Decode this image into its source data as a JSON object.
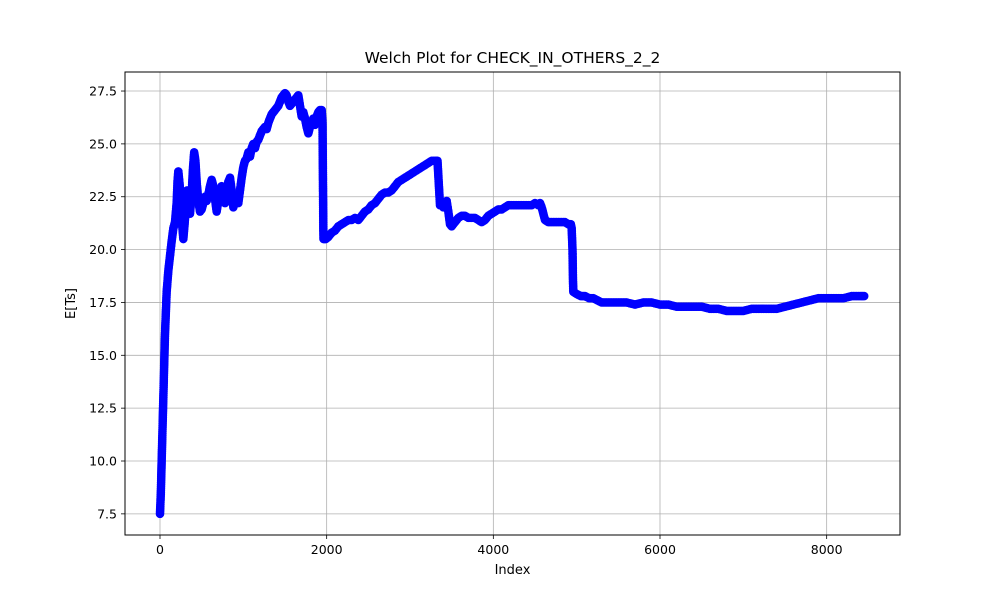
{
  "chart_data": {
    "type": "scatter",
    "title": "Welch Plot for CHECK_IN_OTHERS_2_2",
    "xlabel": "Index",
    "ylabel": "E[Ts]",
    "xlim": [
      -420,
      8880
    ],
    "ylim": [
      6.5,
      28.4
    ],
    "xticks": [
      0,
      2000,
      4000,
      6000,
      8000
    ],
    "xtick_labels": [
      "0",
      "2000",
      "4000",
      "6000",
      "8000"
    ],
    "yticks": [
      7.5,
      10.0,
      12.5,
      15.0,
      17.5,
      20.0,
      22.5,
      25.0,
      27.5
    ],
    "ytick_labels": [
      "7.5",
      "10.0",
      "12.5",
      "15.0",
      "17.5",
      "20.0",
      "22.5",
      "25.0",
      "27.5"
    ],
    "grid": true,
    "marker": "circle",
    "color": "#0000ff",
    "series": [
      {
        "values_xy": [
          [
            0,
            7.5
          ],
          [
            10,
            8.5
          ],
          [
            20,
            10.0
          ],
          [
            30,
            11.5
          ],
          [
            40,
            13.0
          ],
          [
            50,
            14.5
          ],
          [
            60,
            16.0
          ],
          [
            70,
            17.0
          ],
          [
            80,
            18.0
          ],
          [
            100,
            19.0
          ],
          [
            120,
            19.7
          ],
          [
            140,
            20.4
          ],
          [
            160,
            21.0
          ],
          [
            180,
            21.3
          ],
          [
            200,
            22.2
          ],
          [
            210,
            23.2
          ],
          [
            220,
            23.7
          ],
          [
            235,
            23.1
          ],
          [
            250,
            22.2
          ],
          [
            265,
            21.2
          ],
          [
            280,
            20.5
          ],
          [
            295,
            21.2
          ],
          [
            310,
            22.0
          ],
          [
            325,
            22.8
          ],
          [
            340,
            22.3
          ],
          [
            360,
            21.7
          ],
          [
            380,
            22.6
          ],
          [
            395,
            23.8
          ],
          [
            410,
            24.6
          ],
          [
            425,
            24.2
          ],
          [
            440,
            23.2
          ],
          [
            460,
            22.3
          ],
          [
            480,
            21.8
          ],
          [
            500,
            21.9
          ],
          [
            520,
            22.2
          ],
          [
            540,
            22.5
          ],
          [
            560,
            22.3
          ],
          [
            580,
            22.6
          ],
          [
            600,
            23.0
          ],
          [
            620,
            23.3
          ],
          [
            640,
            23.0
          ],
          [
            660,
            22.4
          ],
          [
            680,
            21.8
          ],
          [
            700,
            22.3
          ],
          [
            720,
            22.7
          ],
          [
            740,
            23.0
          ],
          [
            760,
            22.5
          ],
          [
            780,
            22.2
          ],
          [
            800,
            22.8
          ],
          [
            820,
            23.2
          ],
          [
            840,
            23.4
          ],
          [
            860,
            22.8
          ],
          [
            880,
            22.0
          ],
          [
            900,
            22.3
          ],
          [
            920,
            22.5
          ],
          [
            940,
            22.2
          ],
          [
            960,
            22.8
          ],
          [
            980,
            23.4
          ],
          [
            1000,
            23.9
          ],
          [
            1020,
            24.2
          ],
          [
            1040,
            24.3
          ],
          [
            1060,
            24.6
          ],
          [
            1080,
            24.4
          ],
          [
            1100,
            24.8
          ],
          [
            1120,
            25.0
          ],
          [
            1140,
            24.8
          ],
          [
            1160,
            25.1
          ],
          [
            1180,
            25.2
          ],
          [
            1200,
            25.4
          ],
          [
            1220,
            25.6
          ],
          [
            1240,
            25.7
          ],
          [
            1260,
            25.8
          ],
          [
            1280,
            25.7
          ],
          [
            1300,
            26.0
          ],
          [
            1320,
            26.2
          ],
          [
            1340,
            26.4
          ],
          [
            1360,
            26.5
          ],
          [
            1380,
            26.6
          ],
          [
            1400,
            26.7
          ],
          [
            1420,
            26.8
          ],
          [
            1440,
            27.0
          ],
          [
            1460,
            27.2
          ],
          [
            1480,
            27.3
          ],
          [
            1500,
            27.4
          ],
          [
            1520,
            27.3
          ],
          [
            1540,
            27.0
          ],
          [
            1560,
            26.8
          ],
          [
            1580,
            26.9
          ],
          [
            1600,
            27.0
          ],
          [
            1620,
            27.1
          ],
          [
            1640,
            27.2
          ],
          [
            1660,
            27.3
          ],
          [
            1680,
            26.8
          ],
          [
            1700,
            26.3
          ],
          [
            1720,
            26.5
          ],
          [
            1740,
            26.2
          ],
          [
            1760,
            25.8
          ],
          [
            1780,
            25.5
          ],
          [
            1800,
            25.8
          ],
          [
            1820,
            26.0
          ],
          [
            1840,
            26.2
          ],
          [
            1860,
            25.9
          ],
          [
            1880,
            26.3
          ],
          [
            1900,
            26.5
          ],
          [
            1920,
            26.6
          ],
          [
            1940,
            26.6
          ],
          [
            1950,
            26.0
          ],
          [
            1952,
            25.0
          ],
          [
            1954,
            24.0
          ],
          [
            1956,
            23.0
          ],
          [
            1958,
            22.0
          ],
          [
            1960,
            21.0
          ],
          [
            1962,
            20.5
          ],
          [
            1990,
            20.5
          ],
          [
            2020,
            20.6
          ],
          [
            2060,
            20.8
          ],
          [
            2100,
            20.9
          ],
          [
            2140,
            21.1
          ],
          [
            2180,
            21.2
          ],
          [
            2220,
            21.3
          ],
          [
            2260,
            21.4
          ],
          [
            2300,
            21.4
          ],
          [
            2340,
            21.5
          ],
          [
            2380,
            21.4
          ],
          [
            2420,
            21.6
          ],
          [
            2460,
            21.8
          ],
          [
            2500,
            21.9
          ],
          [
            2540,
            22.1
          ],
          [
            2580,
            22.2
          ],
          [
            2620,
            22.4
          ],
          [
            2660,
            22.6
          ],
          [
            2700,
            22.7
          ],
          [
            2740,
            22.7
          ],
          [
            2780,
            22.8
          ],
          [
            2820,
            23.0
          ],
          [
            2860,
            23.2
          ],
          [
            2900,
            23.3
          ],
          [
            2940,
            23.4
          ],
          [
            2980,
            23.5
          ],
          [
            3020,
            23.6
          ],
          [
            3060,
            23.7
          ],
          [
            3100,
            23.8
          ],
          [
            3140,
            23.9
          ],
          [
            3180,
            24.0
          ],
          [
            3220,
            24.1
          ],
          [
            3260,
            24.2
          ],
          [
            3300,
            24.2
          ],
          [
            3330,
            24.2
          ],
          [
            3340,
            23.5
          ],
          [
            3350,
            22.8
          ],
          [
            3360,
            22.1
          ],
          [
            3380,
            22.1
          ],
          [
            3400,
            22.0
          ],
          [
            3420,
            22.2
          ],
          [
            3440,
            22.3
          ],
          [
            3460,
            21.8
          ],
          [
            3480,
            21.2
          ],
          [
            3500,
            21.1
          ],
          [
            3540,
            21.3
          ],
          [
            3580,
            21.5
          ],
          [
            3620,
            21.6
          ],
          [
            3660,
            21.6
          ],
          [
            3700,
            21.5
          ],
          [
            3740,
            21.5
          ],
          [
            3780,
            21.5
          ],
          [
            3820,
            21.4
          ],
          [
            3860,
            21.3
          ],
          [
            3900,
            21.4
          ],
          [
            3940,
            21.6
          ],
          [
            3980,
            21.7
          ],
          [
            4020,
            21.8
          ],
          [
            4060,
            21.9
          ],
          [
            4100,
            21.9
          ],
          [
            4140,
            22.0
          ],
          [
            4180,
            22.1
          ],
          [
            4220,
            22.1
          ],
          [
            4260,
            22.1
          ],
          [
            4300,
            22.1
          ],
          [
            4340,
            22.1
          ],
          [
            4380,
            22.1
          ],
          [
            4420,
            22.1
          ],
          [
            4460,
            22.1
          ],
          [
            4500,
            22.2
          ],
          [
            4540,
            22.1
          ],
          [
            4560,
            22.2
          ],
          [
            4580,
            22.0
          ],
          [
            4600,
            21.7
          ],
          [
            4620,
            21.4
          ],
          [
            4660,
            21.3
          ],
          [
            4700,
            21.3
          ],
          [
            4740,
            21.3
          ],
          [
            4780,
            21.3
          ],
          [
            4820,
            21.3
          ],
          [
            4860,
            21.3
          ],
          [
            4900,
            21.2
          ],
          [
            4930,
            21.2
          ],
          [
            4940,
            21.0
          ],
          [
            4945,
            20.5
          ],
          [
            4950,
            20.0
          ],
          [
            4952,
            19.5
          ],
          [
            4954,
            19.0
          ],
          [
            4956,
            18.5
          ],
          [
            4960,
            18.0
          ],
          [
            5000,
            17.9
          ],
          [
            5050,
            17.8
          ],
          [
            5100,
            17.8
          ],
          [
            5150,
            17.7
          ],
          [
            5200,
            17.7
          ],
          [
            5250,
            17.6
          ],
          [
            5300,
            17.5
          ],
          [
            5400,
            17.5
          ],
          [
            5500,
            17.5
          ],
          [
            5600,
            17.5
          ],
          [
            5700,
            17.4
          ],
          [
            5800,
            17.5
          ],
          [
            5900,
            17.5
          ],
          [
            6000,
            17.4
          ],
          [
            6100,
            17.4
          ],
          [
            6200,
            17.3
          ],
          [
            6300,
            17.3
          ],
          [
            6400,
            17.3
          ],
          [
            6500,
            17.3
          ],
          [
            6600,
            17.2
          ],
          [
            6700,
            17.2
          ],
          [
            6800,
            17.1
          ],
          [
            6900,
            17.1
          ],
          [
            7000,
            17.1
          ],
          [
            7100,
            17.2
          ],
          [
            7200,
            17.2
          ],
          [
            7300,
            17.2
          ],
          [
            7400,
            17.2
          ],
          [
            7500,
            17.3
          ],
          [
            7600,
            17.4
          ],
          [
            7700,
            17.5
          ],
          [
            7800,
            17.6
          ],
          [
            7900,
            17.7
          ],
          [
            8000,
            17.7
          ],
          [
            8100,
            17.7
          ],
          [
            8200,
            17.7
          ],
          [
            8300,
            17.8
          ],
          [
            8400,
            17.8
          ],
          [
            8450,
            17.8
          ]
        ]
      }
    ]
  }
}
